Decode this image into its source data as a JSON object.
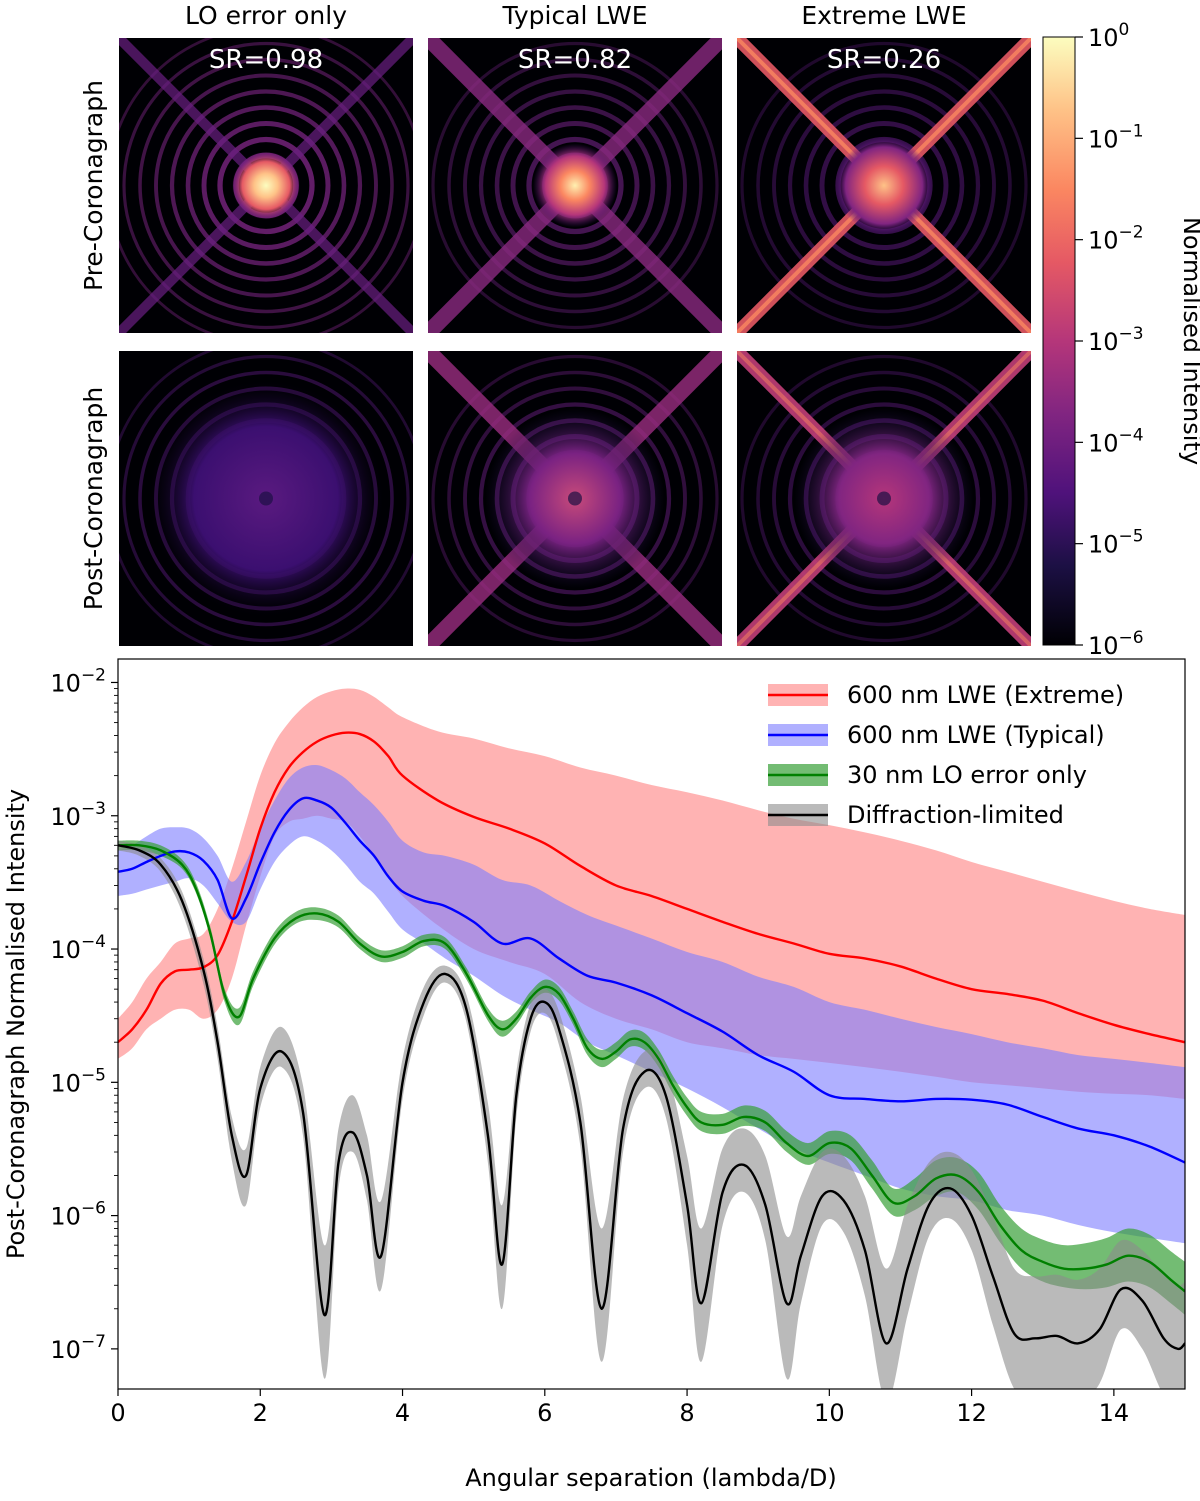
{
  "panels": {
    "columns": [
      {
        "title": "LO error only",
        "sr_label": "SR=0.98",
        "style": "airy"
      },
      {
        "title": "Typical LWE",
        "sr_label": "SR=0.82",
        "style": "typical"
      },
      {
        "title": "Extreme LWE",
        "sr_label": "SR=0.26",
        "style": "extreme"
      }
    ],
    "rows": [
      "Pre-Coronagraph",
      "Post-Coronagraph"
    ],
    "colorbar": {
      "label": "Normalised Intensity",
      "colormap": "magma",
      "scale": "log",
      "range": [
        1e-06,
        1
      ],
      "ticks": [
        {
          "base": "10",
          "exp": "0",
          "value": 1
        },
        {
          "base": "10",
          "exp": "−1",
          "value": 0.1
        },
        {
          "base": "10",
          "exp": "−2",
          "value": 0.01
        },
        {
          "base": "10",
          "exp": "−3",
          "value": 0.001
        },
        {
          "base": "10",
          "exp": "−4",
          "value": 0.0001
        },
        {
          "base": "10",
          "exp": "−5",
          "value": 1e-05
        },
        {
          "base": "10",
          "exp": "−6",
          "value": 1e-06
        }
      ]
    }
  },
  "chart_data": {
    "type": "line",
    "title": "",
    "xlabel": "Angular separation (lambda/D)",
    "ylabel": "Post-Coronagraph Normalised Intensity",
    "yscale": "log",
    "xlim": [
      0,
      15
    ],
    "ylim": [
      5e-08,
      0.015
    ],
    "x_ticks": [
      "0",
      "2",
      "4",
      "6",
      "8",
      "10",
      "12",
      "14"
    ],
    "x_tick_values": [
      0,
      2,
      4,
      6,
      8,
      10,
      12,
      14
    ],
    "y_ticks": [
      {
        "base": "10",
        "exp": "−2",
        "value": 0.01
      },
      {
        "base": "10",
        "exp": "−3",
        "value": 0.001
      },
      {
        "base": "10",
        "exp": "−4",
        "value": 0.0001
      },
      {
        "base": "10",
        "exp": "−5",
        "value": 1e-05
      },
      {
        "base": "10",
        "exp": "−6",
        "value": 1e-06
      },
      {
        "base": "10",
        "exp": "−7",
        "value": 1e-07
      }
    ],
    "grid": false,
    "legend_position": "top-right",
    "series": [
      {
        "name": "600 nm LWE (Extreme)",
        "color": "#ff0000",
        "band_color": "#ff9a9a",
        "band_opacity": 0.75,
        "x": [
          0,
          0.2,
          0.4,
          0.6,
          0.8,
          1.0,
          1.2,
          1.4,
          1.6,
          1.8,
          2.0,
          2.2,
          2.4,
          2.6,
          2.8,
          3.0,
          3.2,
          3.4,
          3.6,
          3.8,
          4.0,
          4.5,
          5.0,
          5.5,
          6.0,
          6.5,
          7.0,
          7.5,
          8.0,
          8.5,
          9.0,
          9.5,
          10.0,
          10.5,
          11.0,
          11.5,
          12.0,
          12.5,
          13.0,
          13.5,
          14.0,
          14.5,
          15.0
        ],
        "values": [
          2e-05,
          2.5e-05,
          3.5e-05,
          5.5e-05,
          6.8e-05,
          7e-05,
          7.3e-05,
          9e-05,
          0.00016,
          0.00035,
          0.0008,
          0.0015,
          0.0023,
          0.003,
          0.0036,
          0.004,
          0.0042,
          0.0041,
          0.0036,
          0.0028,
          0.002,
          0.0013,
          0.00098,
          0.0008,
          0.00062,
          0.00042,
          0.0003,
          0.00025,
          0.0002,
          0.00016,
          0.00013,
          0.00011,
          9.2e-05,
          8.5e-05,
          7.4e-05,
          6e-05,
          5e-05,
          4.6e-05,
          4.1e-05,
          3.3e-05,
          2.7e-05,
          2.3e-05,
          2e-05
        ],
        "lower": [
          1.5e-05,
          1.8e-05,
          2.5e-05,
          3e-05,
          3.5e-05,
          3.5e-05,
          3e-05,
          3.5e-05,
          6e-05,
          0.00015,
          0.00035,
          0.0007,
          0.0009,
          0.00095,
          0.001,
          0.00095,
          0.0009,
          0.0007,
          0.0005,
          0.00035,
          0.00025,
          0.00015,
          0.0001,
          8e-05,
          6.5e-05,
          4e-05,
          3e-05,
          2.5e-05,
          2e-05,
          1.8e-05,
          1.6e-05,
          1.5e-05,
          1.4e-05,
          1.3e-05,
          1.2e-05,
          1.1e-05,
          1e-05,
          9.5e-06,
          9e-06,
          8.5e-06,
          8.2e-06,
          8e-06,
          7.5e-06
        ],
        "upper": [
          3e-05,
          4e-05,
          6e-05,
          8e-05,
          0.00011,
          0.00012,
          0.00013,
          0.0002,
          0.0004,
          0.0009,
          0.002,
          0.0035,
          0.005,
          0.0065,
          0.0078,
          0.0086,
          0.009,
          0.0088,
          0.0078,
          0.0065,
          0.0055,
          0.0043,
          0.0038,
          0.0032,
          0.0028,
          0.0023,
          0.002,
          0.0017,
          0.0015,
          0.0013,
          0.0011,
          0.00095,
          0.00085,
          0.00075,
          0.00065,
          0.00055,
          0.00045,
          0.00038,
          0.00032,
          0.00027,
          0.00023,
          0.0002,
          0.00018
        ]
      },
      {
        "name": "600 nm LWE (Typical)",
        "color": "#0000ff",
        "band_color": "#7b7bff",
        "band_opacity": 0.6,
        "x": [
          0,
          0.2,
          0.4,
          0.6,
          0.8,
          1.0,
          1.2,
          1.4,
          1.6,
          1.8,
          2.0,
          2.2,
          2.4,
          2.6,
          2.8,
          3.0,
          3.2,
          3.4,
          3.6,
          3.8,
          4.0,
          4.3,
          4.6,
          5.0,
          5.4,
          5.8,
          6.2,
          6.6,
          7.0,
          7.5,
          8.0,
          8.5,
          9.0,
          9.5,
          10.0,
          10.5,
          11.0,
          11.5,
          12.0,
          12.5,
          13.0,
          13.5,
          14.0,
          14.5,
          15.0
        ],
        "values": [
          0.00038,
          0.0004,
          0.00045,
          0.0005,
          0.00054,
          0.00053,
          0.00046,
          0.00033,
          0.00017,
          0.00024,
          0.00044,
          0.00075,
          0.0011,
          0.00135,
          0.0013,
          0.00115,
          0.00088,
          0.00065,
          0.0005,
          0.00035,
          0.00027,
          0.00023,
          0.00021,
          0.00016,
          0.00011,
          0.00012,
          8.5e-05,
          6.3e-05,
          5.6e-05,
          4.5e-05,
          3.3e-05,
          2.4e-05,
          1.6e-05,
          1.2e-05,
          8e-06,
          7.5e-06,
          7.2e-06,
          7.5e-06,
          7.4e-06,
          6.8e-06,
          5.5e-06,
          4.5e-06,
          4e-06,
          3.3e-06,
          2.5e-06
        ],
        "lower": [
          0.00025,
          0.00026,
          0.00028,
          0.0003,
          0.00032,
          0.00034,
          0.0003,
          0.00022,
          0.00016,
          0.00016,
          0.00028,
          0.00045,
          0.0006,
          0.0007,
          0.00065,
          0.00055,
          0.00043,
          0.00032,
          0.00026,
          0.00019,
          0.00014,
          0.00011,
          8.5e-05,
          6.3e-05,
          4.5e-05,
          3.5e-05,
          2.8e-05,
          2e-05,
          1.6e-05,
          1.2e-05,
          9e-06,
          6.5e-06,
          4.5e-06,
          3.2e-06,
          2.5e-06,
          2e-06,
          1.6e-06,
          1.4e-06,
          1.3e-06,
          1.1e-06,
          1e-06,
          8.5e-07,
          7.5e-07,
          6.8e-07,
          6.2e-07
        ],
        "upper": [
          0.00055,
          0.0006,
          0.0007,
          0.0008,
          0.00082,
          0.0008,
          0.00068,
          0.0005,
          0.00032,
          0.00045,
          0.0008,
          0.0013,
          0.0019,
          0.0023,
          0.0024,
          0.0022,
          0.0019,
          0.0015,
          0.0012,
          0.0009,
          0.00065,
          0.00053,
          0.0005,
          0.00043,
          0.00033,
          0.0003,
          0.00023,
          0.00018,
          0.00015,
          0.00012,
          9.5e-05,
          8e-05,
          6.2e-05,
          5.2e-05,
          4e-05,
          3.5e-05,
          3e-05,
          2.6e-05,
          2.3e-05,
          2e-05,
          1.8e-05,
          1.6e-05,
          1.5e-05,
          1.4e-05,
          1.3e-05
        ]
      },
      {
        "name": "30 nm LO error only",
        "color": "#008000",
        "band_color": "#37a037",
        "band_opacity": 0.7,
        "x": [
          0,
          0.3,
          0.6,
          0.9,
          1.1,
          1.3,
          1.5,
          1.7,
          1.9,
          2.2,
          2.5,
          2.8,
          3.1,
          3.4,
          3.7,
          4.0,
          4.3,
          4.6,
          4.9,
          5.2,
          5.4,
          5.6,
          5.8,
          6.0,
          6.2,
          6.4,
          6.6,
          6.8,
          7.0,
          7.2,
          7.4,
          7.6,
          7.8,
          8.0,
          8.2,
          8.5,
          8.8,
          9.1,
          9.4,
          9.7,
          10.0,
          10.3,
          10.6,
          10.9,
          11.2,
          11.5,
          11.8,
          12.1,
          12.4,
          12.7,
          13.0,
          13.3,
          13.6,
          13.9,
          14.2,
          14.5,
          14.8,
          15.0
        ],
        "values": [
          0.0006,
          0.0006,
          0.00055,
          0.00043,
          0.00028,
          0.00013,
          4.5e-05,
          3.1e-05,
          6e-05,
          0.00012,
          0.00017,
          0.000185,
          0.00016,
          0.00011,
          8.8e-05,
          9.5e-05,
          0.000115,
          0.00011,
          6.5e-05,
          3.2e-05,
          2.5e-05,
          3e-05,
          4.3e-05,
          5.2e-05,
          4.6e-05,
          3e-05,
          1.8e-05,
          1.5e-05,
          1.7e-05,
          2.1e-05,
          2e-05,
          1.5e-05,
          9.5e-06,
          6.5e-06,
          5e-06,
          4.8e-06,
          5.5e-06,
          5e-06,
          3.5e-06,
          2.8e-06,
          3.5e-06,
          3.2e-06,
          2e-06,
          1.25e-06,
          1.4e-06,
          1.9e-06,
          2e-06,
          1.5e-06,
          8.5e-07,
          5.5e-07,
          4.5e-07,
          4e-07,
          4e-07,
          4.3e-07,
          5e-07,
          4.5e-07,
          3.3e-07,
          2.7e-07
        ],
        "lower": [
          0.00055,
          0.00055,
          0.0005,
          0.0004,
          0.00026,
          0.00012,
          4e-05,
          2.7e-05,
          5.3e-05,
          0.000108,
          0.000155,
          0.000165,
          0.000145,
          0.0001,
          8e-05,
          8.6e-05,
          0.000105,
          0.0001,
          5.9e-05,
          2.9e-05,
          2.2e-05,
          2.7e-05,
          3.9e-05,
          4.7e-05,
          4.1e-05,
          2.7e-05,
          1.6e-05,
          1.3e-05,
          1.5e-05,
          1.85e-05,
          1.75e-05,
          1.3e-05,
          8.2e-06,
          5.6e-06,
          4.3e-06,
          4.1e-06,
          4.7e-06,
          4.3e-06,
          3e-06,
          2.4e-06,
          2.9e-06,
          2.6e-06,
          1.6e-06,
          1e-06,
          1.1e-06,
          1.4e-06,
          1.5e-06,
          1.1e-06,
          6.3e-07,
          4e-07,
          3.2e-07,
          2.9e-07,
          2.8e-07,
          2.9e-07,
          3.2e-07,
          2.9e-07,
          2.2e-07,
          1.8e-07
        ],
        "upper": [
          0.00065,
          0.00065,
          0.0006,
          0.00047,
          0.00031,
          0.000145,
          5e-05,
          3.6e-05,
          6.8e-05,
          0.000135,
          0.00019,
          0.000205,
          0.000178,
          0.000122,
          9.8e-05,
          0.000105,
          0.000128,
          0.000122,
          7.2e-05,
          3.6e-05,
          2.9e-05,
          3.4e-05,
          4.8e-05,
          5.9e-05,
          5.2e-05,
          3.4e-05,
          2.1e-05,
          1.75e-05,
          2e-05,
          2.45e-05,
          2.35e-05,
          1.75e-05,
          1.12e-05,
          7.7e-06,
          6e-06,
          5.8e-06,
          6.7e-06,
          6.1e-06,
          4.3e-06,
          3.5e-06,
          4.3e-06,
          4e-06,
          2.6e-06,
          1.6e-06,
          1.9e-06,
          2.6e-06,
          2.7e-06,
          2.1e-06,
          1.2e-06,
          8e-07,
          6.6e-07,
          6e-07,
          6.2e-07,
          6.8e-07,
          8e-07,
          7.2e-07,
          5.4e-07,
          4.5e-07
        ]
      },
      {
        "name": "Diffraction-limited",
        "color": "#000000",
        "band_color": "#8c8c8c",
        "band_opacity": 0.6,
        "x": [
          0,
          0.3,
          0.6,
          0.9,
          1.2,
          1.4,
          1.6,
          1.8,
          2.0,
          2.3,
          2.6,
          2.9,
          3.1,
          3.3,
          3.5,
          3.7,
          4.0,
          4.3,
          4.6,
          4.9,
          5.2,
          5.4,
          5.6,
          5.8,
          6.0,
          6.2,
          6.5,
          6.8,
          7.1,
          7.4,
          7.7,
          8.0,
          8.2,
          8.5,
          8.8,
          9.1,
          9.4,
          9.6,
          9.9,
          10.2,
          10.5,
          10.8,
          11.1,
          11.4,
          11.7,
          12.0,
          12.3,
          12.6,
          12.9,
          13.2,
          13.5,
          13.8,
          14.1,
          14.4,
          14.7,
          14.9,
          15.0
        ],
        "values": [
          0.0006,
          0.00055,
          0.00043,
          0.00023,
          7e-05,
          2e-05,
          4e-06,
          2e-06,
          9e-06,
          1.7e-05,
          6e-06,
          1.8e-07,
          2.5e-06,
          4.2e-06,
          2e-06,
          5e-07,
          1e-05,
          4e-05,
          6.5e-05,
          3.5e-05,
          4e-06,
          4.3e-07,
          8e-06,
          3e-05,
          4e-05,
          2.5e-05,
          5e-06,
          2e-07,
          4.5e-06,
          1.2e-05,
          8e-06,
          1.2e-06,
          2.2e-07,
          1.5e-06,
          2.4e-06,
          1.2e-06,
          2.2e-07,
          5e-07,
          1.4e-06,
          1.3e-06,
          5.5e-07,
          1.1e-07,
          4e-07,
          1.2e-06,
          1.6e-06,
          1e-06,
          3.5e-07,
          1.3e-07,
          1.2e-07,
          1.25e-07,
          1.1e-07,
          1.4e-07,
          2.8e-07,
          2.3e-07,
          1.2e-07,
          1e-07,
          1.1e-07
        ],
        "lower": [
          0.00055,
          0.0005,
          0.00038,
          0.00019,
          5.5e-05,
          1.5e-05,
          2.6e-06,
          1.2e-06,
          6.5e-06,
          1.3e-05,
          4e-06,
          6e-08,
          1.6e-06,
          3e-06,
          1.3e-06,
          2.8e-07,
          7.5e-06,
          3.2e-05,
          5.6e-05,
          2.8e-05,
          2.5e-06,
          2e-07,
          5.5e-06,
          2.4e-05,
          3.3e-05,
          1.9e-05,
          3.3e-06,
          8e-08,
          3e-06,
          9e-06,
          5.5e-06,
          6e-07,
          8e-08,
          8.5e-07,
          1.5e-06,
          6.5e-07,
          6e-08,
          2.2e-07,
          8.5e-07,
          7.5e-07,
          2.5e-07,
          4e-08,
          1.8e-07,
          7e-07,
          9.5e-07,
          5.5e-07,
          1.5e-07,
          5e-08,
          4e-08,
          4e-08,
          4e-08,
          5.5e-08,
          1.4e-07,
          1e-07,
          4.5e-08,
          4e-08,
          4.5e-08
        ],
        "upper": [
          0.00065,
          0.0006,
          0.00048,
          0.00027,
          8.5e-05,
          2.6e-05,
          5.5e-06,
          3.2e-06,
          1.3e-05,
          2.6e-05,
          9.5e-06,
          6e-07,
          4.5e-06,
          8e-06,
          4e-06,
          1.3e-06,
          1.5e-05,
          5.2e-05,
          7.5e-05,
          4.5e-05,
          7e-06,
          1.2e-06,
          1.2e-05,
          3.9e-05,
          5e-05,
          3.4e-05,
          8e-06,
          8e-07,
          7.5e-06,
          1.7e-05,
          1.3e-05,
          2.8e-06,
          8e-07,
          3.2e-06,
          4.5e-06,
          2.8e-06,
          7e-07,
          1.4e-06,
          3e-06,
          2.8e-06,
          1.4e-06,
          4e-07,
          1.2e-06,
          2.5e-06,
          3e-06,
          2.2e-06,
          1e-06,
          4e-07,
          3.5e-07,
          3.6e-07,
          3.3e-07,
          4e-07,
          6.5e-07,
          5.5e-07,
          3.6e-07,
          3e-07,
          3.2e-07
        ]
      }
    ]
  }
}
